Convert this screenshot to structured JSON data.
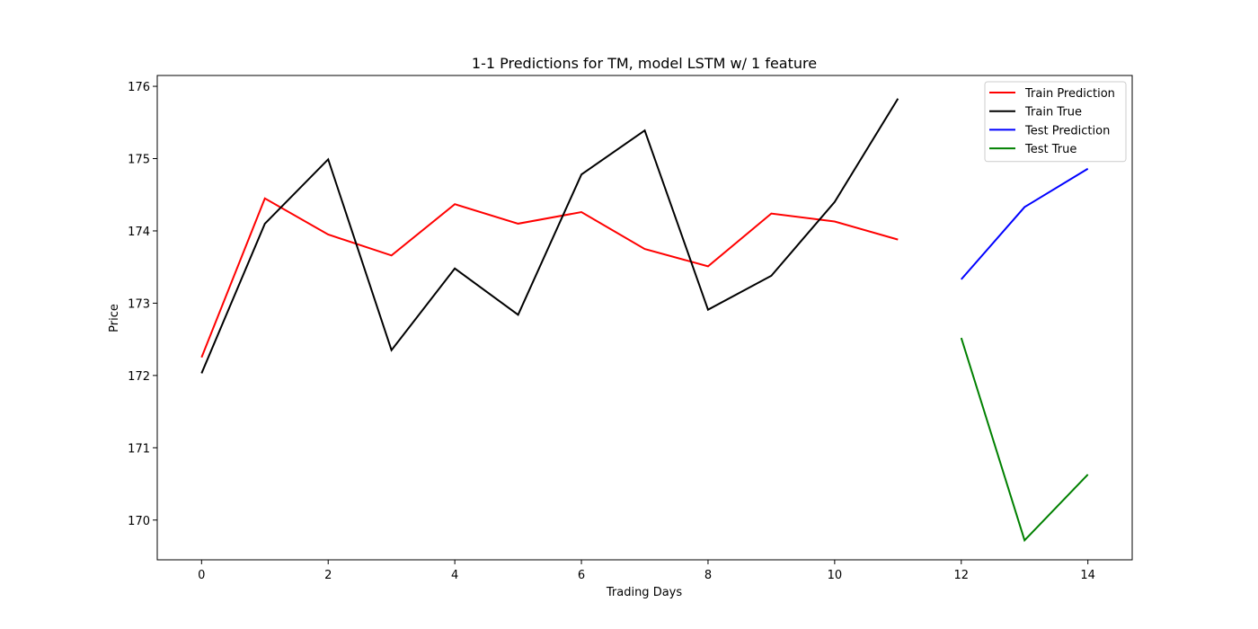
{
  "chart_data": {
    "type": "line",
    "title": "1-1 Predictions for TM, model LSTM w/ 1 feature",
    "xlabel": "Trading Days",
    "ylabel": "Price",
    "xlim": [
      -0.7,
      14.7
    ],
    "ylim": [
      169.45,
      176.15
    ],
    "xticks": [
      0,
      2,
      4,
      6,
      8,
      10,
      12,
      14
    ],
    "yticks": [
      170,
      171,
      172,
      173,
      174,
      175,
      176
    ],
    "grid": false,
    "legend_position": "top-right",
    "series": [
      {
        "name": "Train Prediction",
        "color": "#ff0000",
        "x": [
          0,
          1,
          2,
          3,
          4,
          5,
          6,
          7,
          8,
          9,
          10,
          11
        ],
        "y": [
          172.25,
          174.45,
          173.95,
          173.66,
          174.37,
          174.1,
          174.26,
          173.75,
          173.51,
          174.24,
          174.13,
          173.88
        ]
      },
      {
        "name": "Train True",
        "color": "#000000",
        "x": [
          0,
          1,
          2,
          3,
          4,
          5,
          6,
          7,
          8,
          9,
          10,
          11
        ],
        "y": [
          172.03,
          174.1,
          174.99,
          172.35,
          173.48,
          172.84,
          174.78,
          175.39,
          172.91,
          173.38,
          174.4,
          175.83
        ]
      },
      {
        "name": "Test Prediction",
        "color": "#0000ff",
        "x": [
          12,
          13,
          14
        ],
        "y": [
          173.33,
          174.33,
          174.86
        ]
      },
      {
        "name": "Test True",
        "color": "#008000",
        "x": [
          12,
          13,
          14
        ],
        "y": [
          172.52,
          169.72,
          170.63
        ]
      }
    ]
  }
}
